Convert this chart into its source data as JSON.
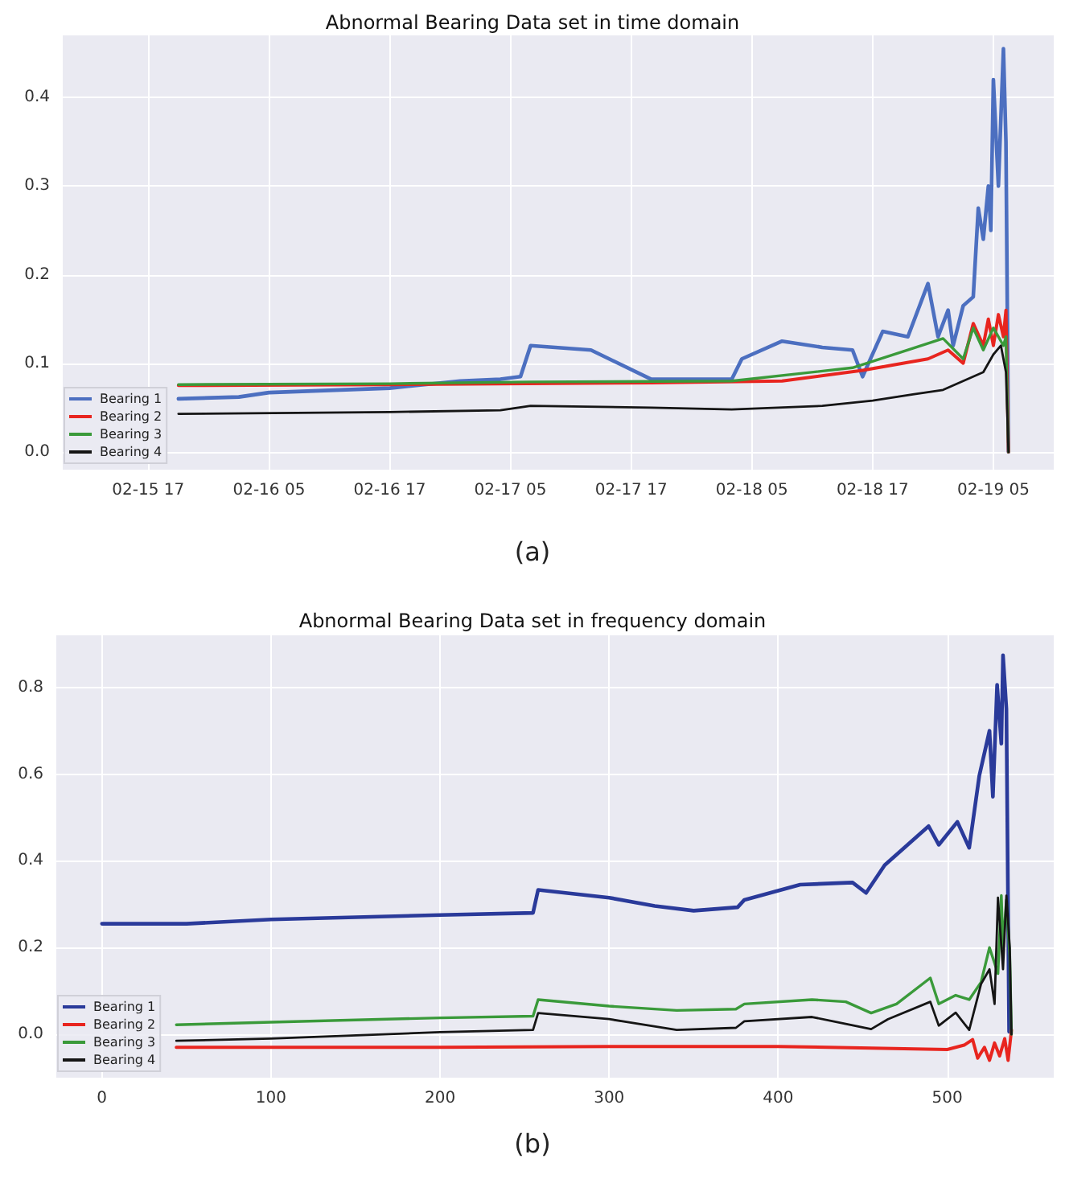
{
  "chart_data": [
    {
      "type": "line",
      "title": "Abnormal Bearing Data set in time domain",
      "annotations": [
        "(a)"
      ],
      "grid": true,
      "legend": "bottom left",
      "marker": "none",
      "xlim": [
        "--02-15T08:30",
        "--02-19T11:00"
      ],
      "xticks": [
        {
          "value": "--02-15T17:00",
          "label": "02-15 17"
        },
        {
          "value": "--02-16T05:00",
          "label": "02-16 05"
        },
        {
          "value": "--02-16T17:00",
          "label": "02-16 17"
        },
        {
          "value": "--02-17T05:00",
          "label": "02-17 05"
        },
        {
          "value": "--02-17T17:00",
          "label": "02-17 17"
        },
        {
          "value": "--02-18T05:00",
          "label": "02-18 05"
        },
        {
          "value": "--02-18T17:00",
          "label": "02-18 17"
        },
        {
          "value": "--02-19T05:00",
          "label": "02-19 05"
        }
      ],
      "ylim": [
        -0.02,
        0.47
      ],
      "yticks": [
        {
          "value": 0,
          "label": "0.0"
        },
        0.1,
        0.2,
        0.3,
        0.4
      ],
      "series": [
        {
          "name": "Bearing 1",
          "color": "#4c6fc0",
          "x": [
            "--02-15T20:00",
            "--02-16T02:00",
            "--02-16T05:00",
            "--02-16T17:00",
            "--02-17T00:00",
            "--02-17T04:00",
            "--02-17T06:00",
            "--02-17T07:00",
            "--02-17T13:00",
            "--02-17T19:00",
            "--02-18T03:00",
            "--02-18T04:00",
            "--02-18T08:00",
            "--02-18T12:00",
            "--02-18T15:00",
            "--02-18T16:00",
            "--02-18T18:00",
            "--02-18T20:30",
            "--02-18T22:30",
            "--02-18T23:30",
            "--02-19T00:30",
            "--02-19T01:00",
            "--02-19T02:00",
            "--02-19T03:00",
            "--02-19T03:30",
            "--02-19T04:00",
            "--02-19T04:30",
            "--02-19T04:45",
            "--02-19T05:00",
            "--02-19T05:30",
            "--02-19T06:00",
            "--02-19T06:15",
            "--02-19T06:30"
          ],
          "values": [
            0.06,
            0.062,
            0.067,
            0.072,
            0.08,
            0.082,
            0.085,
            0.12,
            0.115,
            0.082,
            0.082,
            0.105,
            0.125,
            0.118,
            0.115,
            0.085,
            0.136,
            0.13,
            0.19,
            0.13,
            0.16,
            0.12,
            0.165,
            0.175,
            0.275,
            0.24,
            0.3,
            0.25,
            0.42,
            0.3,
            0.455,
            0.35,
            0.0
          ]
        },
        {
          "name": "Bearing 2",
          "color": "#e8251f",
          "x": [
            "--02-15T20:00",
            "--02-16T17:00",
            "--02-17T19:00",
            "--02-18T08:00",
            "--02-18T16:00",
            "--02-18T22:30",
            "--02-19T00:30",
            "--02-19T02:00",
            "--02-19T03:00",
            "--02-19T04:00",
            "--02-19T04:30",
            "--02-19T05:00",
            "--02-19T05:30",
            "--02-19T06:00",
            "--02-19T06:15",
            "--02-19T06:30"
          ],
          "values": [
            0.075,
            0.076,
            0.078,
            0.08,
            0.092,
            0.105,
            0.115,
            0.1,
            0.145,
            0.12,
            0.15,
            0.12,
            0.155,
            0.13,
            0.16,
            0.0
          ]
        },
        {
          "name": "Bearing 3",
          "color": "#3a9a3a",
          "x": [
            "--02-15T20:00",
            "--02-16T17:00",
            "--02-17T07:00",
            "--02-18T03:00",
            "--02-18T15:00",
            "--02-18T20:30",
            "--02-19T00:00",
            "--02-19T02:00",
            "--02-19T03:00",
            "--02-19T04:00",
            "--02-19T05:00",
            "--02-19T06:00",
            "--02-19T06:15",
            "--02-19T06:30"
          ],
          "values": [
            0.076,
            0.077,
            0.079,
            0.08,
            0.095,
            0.115,
            0.128,
            0.105,
            0.14,
            0.115,
            0.14,
            0.12,
            0.13,
            0.0
          ]
        },
        {
          "name": "Bearing 4",
          "color": "#151515",
          "x": [
            "--02-15T20:00",
            "--02-16T17:00",
            "--02-17T04:00",
            "--02-17T07:00",
            "--02-17T19:00",
            "--02-18T03:00",
            "--02-18T12:00",
            "--02-18T17:00",
            "--02-18T21:00",
            "--02-19T00:00",
            "--02-19T02:00",
            "--02-19T04:00",
            "--02-19T05:00",
            "--02-19T05:45",
            "--02-19T06:15",
            "--02-19T06:30"
          ],
          "values": [
            0.043,
            0.045,
            0.047,
            0.052,
            0.05,
            0.048,
            0.052,
            0.058,
            0.065,
            0.07,
            0.08,
            0.09,
            0.11,
            0.12,
            0.09,
            0.0
          ]
        }
      ]
    },
    {
      "type": "line",
      "title": "Abnormal Bearing Data set in frequency domain",
      "annotations": [
        "(b)"
      ],
      "grid": true,
      "legend": "bottom left",
      "marker": "none",
      "xlim": [
        -27,
        563
      ],
      "xticks": [
        0,
        100,
        200,
        300,
        400,
        500
      ],
      "ylim": [
        -0.1,
        0.92
      ],
      "yticks": [
        {
          "value": 0,
          "label": "0.0"
        },
        0.2,
        0.4,
        0.6,
        0.8
      ],
      "series": [
        {
          "name": "Bearing 1",
          "color": "#2a3a9a",
          "x": [
            0,
            50,
            100,
            200,
            255,
            258,
            300,
            327,
            350,
            376,
            380,
            413,
            444,
            452,
            463,
            489,
            495,
            506,
            513,
            519,
            525,
            527,
            529.5,
            532,
            533,
            535,
            536.6
          ],
          "values": [
            0.255,
            0.255,
            0.265,
            0.275,
            0.28,
            0.333,
            0.315,
            0.296,
            0.285,
            0.293,
            0.31,
            0.345,
            0.35,
            0.326,
            0.39,
            0.48,
            0.437,
            0.49,
            0.43,
            0.597,
            0.7,
            0.548,
            0.806,
            0.67,
            0.874,
            0.75,
            0.006
          ]
        },
        {
          "name": "Bearing 2",
          "color": "#e8251f",
          "x": [
            44,
            200,
            300,
            400,
            500,
            510,
            515,
            518,
            522,
            525,
            528,
            531,
            534,
            536,
            538
          ],
          "values": [
            -0.03,
            -0.03,
            -0.028,
            -0.028,
            -0.035,
            -0.025,
            -0.012,
            -0.055,
            -0.03,
            -0.06,
            -0.02,
            -0.05,
            -0.01,
            -0.06,
            0.01
          ]
        },
        {
          "name": "Bearing 3",
          "color": "#3a9a3a",
          "x": [
            44,
            100,
            200,
            255,
            258,
            300,
            340,
            375,
            380,
            420,
            440,
            455,
            470,
            490,
            495,
            505,
            513,
            520,
            525,
            530,
            532,
            533,
            535,
            537,
            538
          ],
          "values": [
            0.022,
            0.028,
            0.038,
            0.042,
            0.08,
            0.065,
            0.055,
            0.058,
            0.07,
            0.08,
            0.075,
            0.049,
            0.07,
            0.13,
            0.07,
            0.09,
            0.08,
            0.12,
            0.2,
            0.14,
            0.32,
            0.2,
            0.31,
            0.18,
            0.0
          ]
        },
        {
          "name": "Bearing 4",
          "color": "#151515",
          "x": [
            44,
            100,
            200,
            255,
            258,
            300,
            340,
            375,
            380,
            420,
            455,
            465,
            490,
            495,
            505,
            513,
            520,
            525,
            528,
            530,
            533,
            535,
            537,
            538
          ],
          "values": [
            -0.015,
            -0.01,
            0.005,
            0.01,
            0.049,
            0.035,
            0.01,
            0.015,
            0.03,
            0.04,
            0.012,
            0.035,
            0.075,
            0.02,
            0.05,
            0.01,
            0.116,
            0.15,
            0.07,
            0.315,
            0.15,
            0.32,
            0.2,
            0.0
          ]
        }
      ]
    }
  ]
}
